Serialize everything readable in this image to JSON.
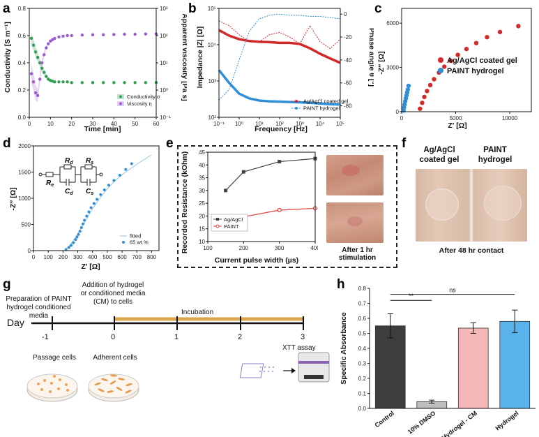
{
  "panel_labels": {
    "a": "a",
    "b": "b",
    "c": "c",
    "d": "d",
    "e": "e",
    "f": "f",
    "g": "g",
    "h": "h"
  },
  "colors": {
    "green": "#2e9e4f",
    "purple": "#9b59d0",
    "red": "#d12a2a",
    "blue": "#2f8fd8",
    "gray_line": "#444444",
    "red_line": "#e23b3b",
    "bar_control": "#3d3d3d",
    "bar_dmso": "#bdbdbd",
    "bar_cm": "#f4b8b8",
    "bar_hydrogel": "#5ab2ea",
    "incubation": "#d9a54a"
  },
  "chart_data": [
    {
      "id": "a",
      "type": "scatter",
      "xlabel": "Time [min]",
      "ylabel": "Conductivity [S m⁻¹]",
      "y2label": "Apparent viscosity [Pa s]",
      "xlim": [
        0,
        60
      ],
      "ylim": [
        0,
        0.8
      ],
      "y2lim_log10": [
        -1,
        3
      ],
      "xticks": [
        0,
        10,
        20,
        30,
        40,
        50,
        60
      ],
      "yticks": [
        0.0,
        0.2,
        0.4,
        0.6,
        0.8
      ],
      "y2ticks": [
        "10⁻¹",
        "10⁰",
        "10¹",
        "10²",
        "10³"
      ],
      "series": [
        {
          "name": "Conductivity",
          "symbol": "σ",
          "axis": "left",
          "x": [
            1,
            2,
            3,
            4,
            5,
            6,
            7,
            8,
            9,
            10,
            11,
            12,
            14,
            16,
            18,
            20,
            25,
            30,
            35,
            40,
            45,
            50,
            55,
            60
          ],
          "y": [
            0.58,
            0.53,
            0.48,
            0.44,
            0.4,
            0.36,
            0.33,
            0.3,
            0.28,
            0.27,
            0.265,
            0.26,
            0.26,
            0.26,
            0.26,
            0.255,
            0.255,
            0.255,
            0.255,
            0.255,
            0.255,
            0.255,
            0.255,
            0.255
          ]
        },
        {
          "name": "Viscosity",
          "symbol": "η",
          "axis": "right",
          "x": [
            1,
            2,
            3,
            4,
            5,
            6,
            7,
            8,
            9,
            10,
            11,
            12,
            14,
            16,
            18,
            20,
            25,
            30,
            35,
            40,
            45,
            50,
            55,
            60
          ],
          "y_log10": [
            0.6,
            0.3,
            -0.1,
            -0.2,
            0.4,
            1.0,
            1.3,
            1.55,
            1.7,
            1.8,
            1.85,
            1.9,
            1.95,
            1.98,
            2.0,
            2.0,
            2.02,
            2.03,
            2.03,
            2.04,
            2.05,
            2.05,
            2.06,
            2.06
          ]
        }
      ],
      "legend": "bottom-right"
    },
    {
      "id": "b",
      "type": "line",
      "xlabel": "Frequency [Hz]",
      "ylabel": "Impedance |Z| [Ω]",
      "y2label": "Phase angle θ [°]",
      "xlim_log10": [
        -1,
        5
      ],
      "ylim_log10": [
        2,
        5
      ],
      "y2lim": [
        -90,
        5
      ],
      "xticks": [
        "10⁻¹",
        "10⁰",
        "10¹",
        "10²",
        "10³",
        "10⁴",
        "10⁵"
      ],
      "yticks": [
        "10²",
        "10³",
        "10⁴",
        "10⁵"
      ],
      "y2ticks": [
        0,
        -20,
        -40,
        -60,
        -80
      ],
      "series": [
        {
          "name": "Ag/AgCl coated gel",
          "kind": "impedance",
          "x_log10": [
            -1,
            -0.5,
            0,
            0.5,
            1,
            1.5,
            2,
            2.5,
            3,
            3.5,
            4,
            4.5,
            5
          ],
          "y_log10": [
            4.4,
            4.25,
            4.15,
            4.1,
            4.08,
            4.07,
            4.05,
            4.05,
            4.02,
            3.9,
            3.75,
            3.62,
            3.5
          ]
        },
        {
          "name": "PAINT hydrogel",
          "kind": "impedance",
          "x_log10": [
            -1,
            -0.5,
            0,
            0.5,
            1,
            1.5,
            2,
            2.5,
            3,
            3.5,
            4,
            4.5,
            5
          ],
          "y_log10": [
            3.3,
            2.95,
            2.65,
            2.52,
            2.46,
            2.44,
            2.43,
            2.42,
            2.41,
            2.4,
            2.38,
            2.36,
            2.35
          ]
        },
        {
          "name": "Ag/AgCl coated gel",
          "kind": "phase",
          "x_log10": [
            -1,
            -0.5,
            0,
            0.5,
            1,
            1.5,
            2,
            2.5,
            3,
            3.5,
            4,
            4.5,
            5
          ],
          "y": [
            -6,
            -10,
            -18,
            -24,
            -24,
            -18,
            -16,
            -20,
            -26,
            -10,
            -24,
            -30,
            -22
          ]
        },
        {
          "name": "PAINT hydrogel",
          "kind": "phase",
          "x_log10": [
            -1,
            -0.5,
            0,
            0.5,
            1,
            1.5,
            2,
            2.5,
            3,
            3.5,
            4,
            4.5,
            5
          ],
          "y": [
            -75,
            -66,
            -40,
            -15,
            -4,
            -1,
            0,
            -1,
            -1,
            -2,
            -2,
            -3,
            -4
          ]
        }
      ],
      "legend": "bottom-right"
    },
    {
      "id": "c",
      "type": "scatter",
      "xlabel": "Z′ [Ω]",
      "ylabel": "-Z″ [Ω]",
      "xlim": [
        0,
        12000
      ],
      "ylim": [
        0,
        7000
      ],
      "xticks": [
        0,
        5000,
        10000
      ],
      "yticks": [
        0,
        3000,
        6000
      ],
      "series": [
        {
          "name": "Ag/AgCl coated gel",
          "x": [
            1700,
            1900,
            2100,
            2350,
            2650,
            3000,
            3450,
            3950,
            4550,
            5200,
            6000,
            6900,
            7900,
            9100,
            10800
          ],
          "y": [
            200,
            600,
            1000,
            1400,
            1800,
            2200,
            2650,
            3050,
            3450,
            3850,
            4250,
            4650,
            5050,
            5400,
            5800
          ]
        },
        {
          "name": "PAINT hydrogel",
          "x": [
            170,
            220,
            270,
            330,
            390,
            450,
            510,
            570,
            640
          ],
          "y": [
            80,
            280,
            480,
            700,
            900,
            1100,
            1300,
            1500,
            1750
          ]
        }
      ],
      "legend": "right"
    },
    {
      "id": "d",
      "type": "scatter",
      "xlabel": "Z′ [Ω]",
      "ylabel": "-Z″ [Ω]",
      "xlim": [
        0,
        850
      ],
      "ylim": [
        0,
        2000
      ],
      "xticks": [
        0,
        100,
        200,
        300,
        400,
        500,
        600,
        700,
        800
      ],
      "yticks": [
        0,
        500,
        1000,
        1500,
        2000
      ],
      "circuit_labels": {
        "Rd": "R",
        "Rd_sub": "d",
        "Cd": "C",
        "Cd_sub": "d",
        "Rs": "R",
        "Rs_sub": "s",
        "Cs": "C",
        "Cs_sub": "s",
        "Re": "R",
        "Re_sub": "e"
      },
      "series": [
        {
          "name": "65 wt.%",
          "x": [
            220,
            240,
            255,
            270,
            285,
            295,
            305,
            315,
            325,
            335,
            345,
            360,
            375,
            390,
            410,
            430,
            455,
            480,
            510,
            545,
            585,
            625,
            665
          ],
          "y": [
            20,
            60,
            100,
            150,
            210,
            260,
            310,
            370,
            440,
            510,
            580,
            660,
            740,
            820,
            900,
            980,
            1070,
            1160,
            1250,
            1340,
            1440,
            1550,
            1660
          ]
        },
        {
          "name": "fitted",
          "x": [
            210,
            250,
            300,
            350,
            400,
            450,
            500,
            550,
            600,
            650,
            700,
            750,
            800
          ],
          "y": [
            0,
            110,
            320,
            560,
            800,
            1000,
            1180,
            1330,
            1450,
            1550,
            1650,
            1740,
            1830
          ]
        }
      ],
      "legend": "bottom-right"
    },
    {
      "id": "e",
      "type": "line",
      "xlabel": "Current pulse width (µs)",
      "ylabel": "Recorded Resistance (kOhm)",
      "xlim": [
        100,
        400
      ],
      "ylim": [
        10,
        45
      ],
      "xticks": [
        100,
        200,
        300,
        400
      ],
      "yticks": [
        10,
        15,
        20,
        25,
        30,
        35,
        40,
        45
      ],
      "series": [
        {
          "name": "Ag/AgCl",
          "marker": "square",
          "x": [
            150,
            200,
            300,
            400
          ],
          "y": [
            30,
            37.3,
            41.3,
            42.5
          ]
        },
        {
          "name": "PAINT",
          "marker": "circle",
          "x": [
            150,
            200,
            300,
            400
          ],
          "y": [
            16.3,
            19.7,
            22.3,
            23
          ]
        }
      ],
      "legend": "bottom-left"
    },
    {
      "id": "h",
      "type": "bar",
      "ylabel": "Specific Absorbance",
      "ylim": [
        0,
        0.8
      ],
      "yticks": [
        0.0,
        0.1,
        0.2,
        0.3,
        0.4,
        0.5,
        0.6,
        0.7,
        0.8
      ],
      "categories": [
        "Control",
        "10% DMSO",
        "Hydrogel - CM",
        "Hydrogel"
      ],
      "values": [
        0.55,
        0.045,
        0.535,
        0.58
      ],
      "errors": [
        0.08,
        0.01,
        0.035,
        0.075
      ],
      "significance": [
        {
          "pair": [
            "Control",
            "10% DMSO"
          ],
          "label": "**"
        },
        {
          "pair": [
            "Control",
            "Hydrogel"
          ],
          "label": "ns"
        }
      ]
    }
  ],
  "panel_e": {
    "photo_caption": "After 1 hr stimulation"
  },
  "panel_f": {
    "label_left": "Ag/AgCl coated gel",
    "label_right": "PAINT hydrogel",
    "caption": "After 48 hr contact"
  },
  "panel_g": {
    "day_label": "Day",
    "days": [
      "-1",
      "0",
      "1",
      "2",
      "3"
    ],
    "top_text_1": "Preparation of PAINT hydrogel conditioned media",
    "top_text_2": "Addition of hydrogel or conditioned media (CM) to cells",
    "incubation": "Incubation",
    "bottom_1": "Passage cells",
    "bottom_2": "Adherent cells",
    "assay": "XTT assay"
  }
}
